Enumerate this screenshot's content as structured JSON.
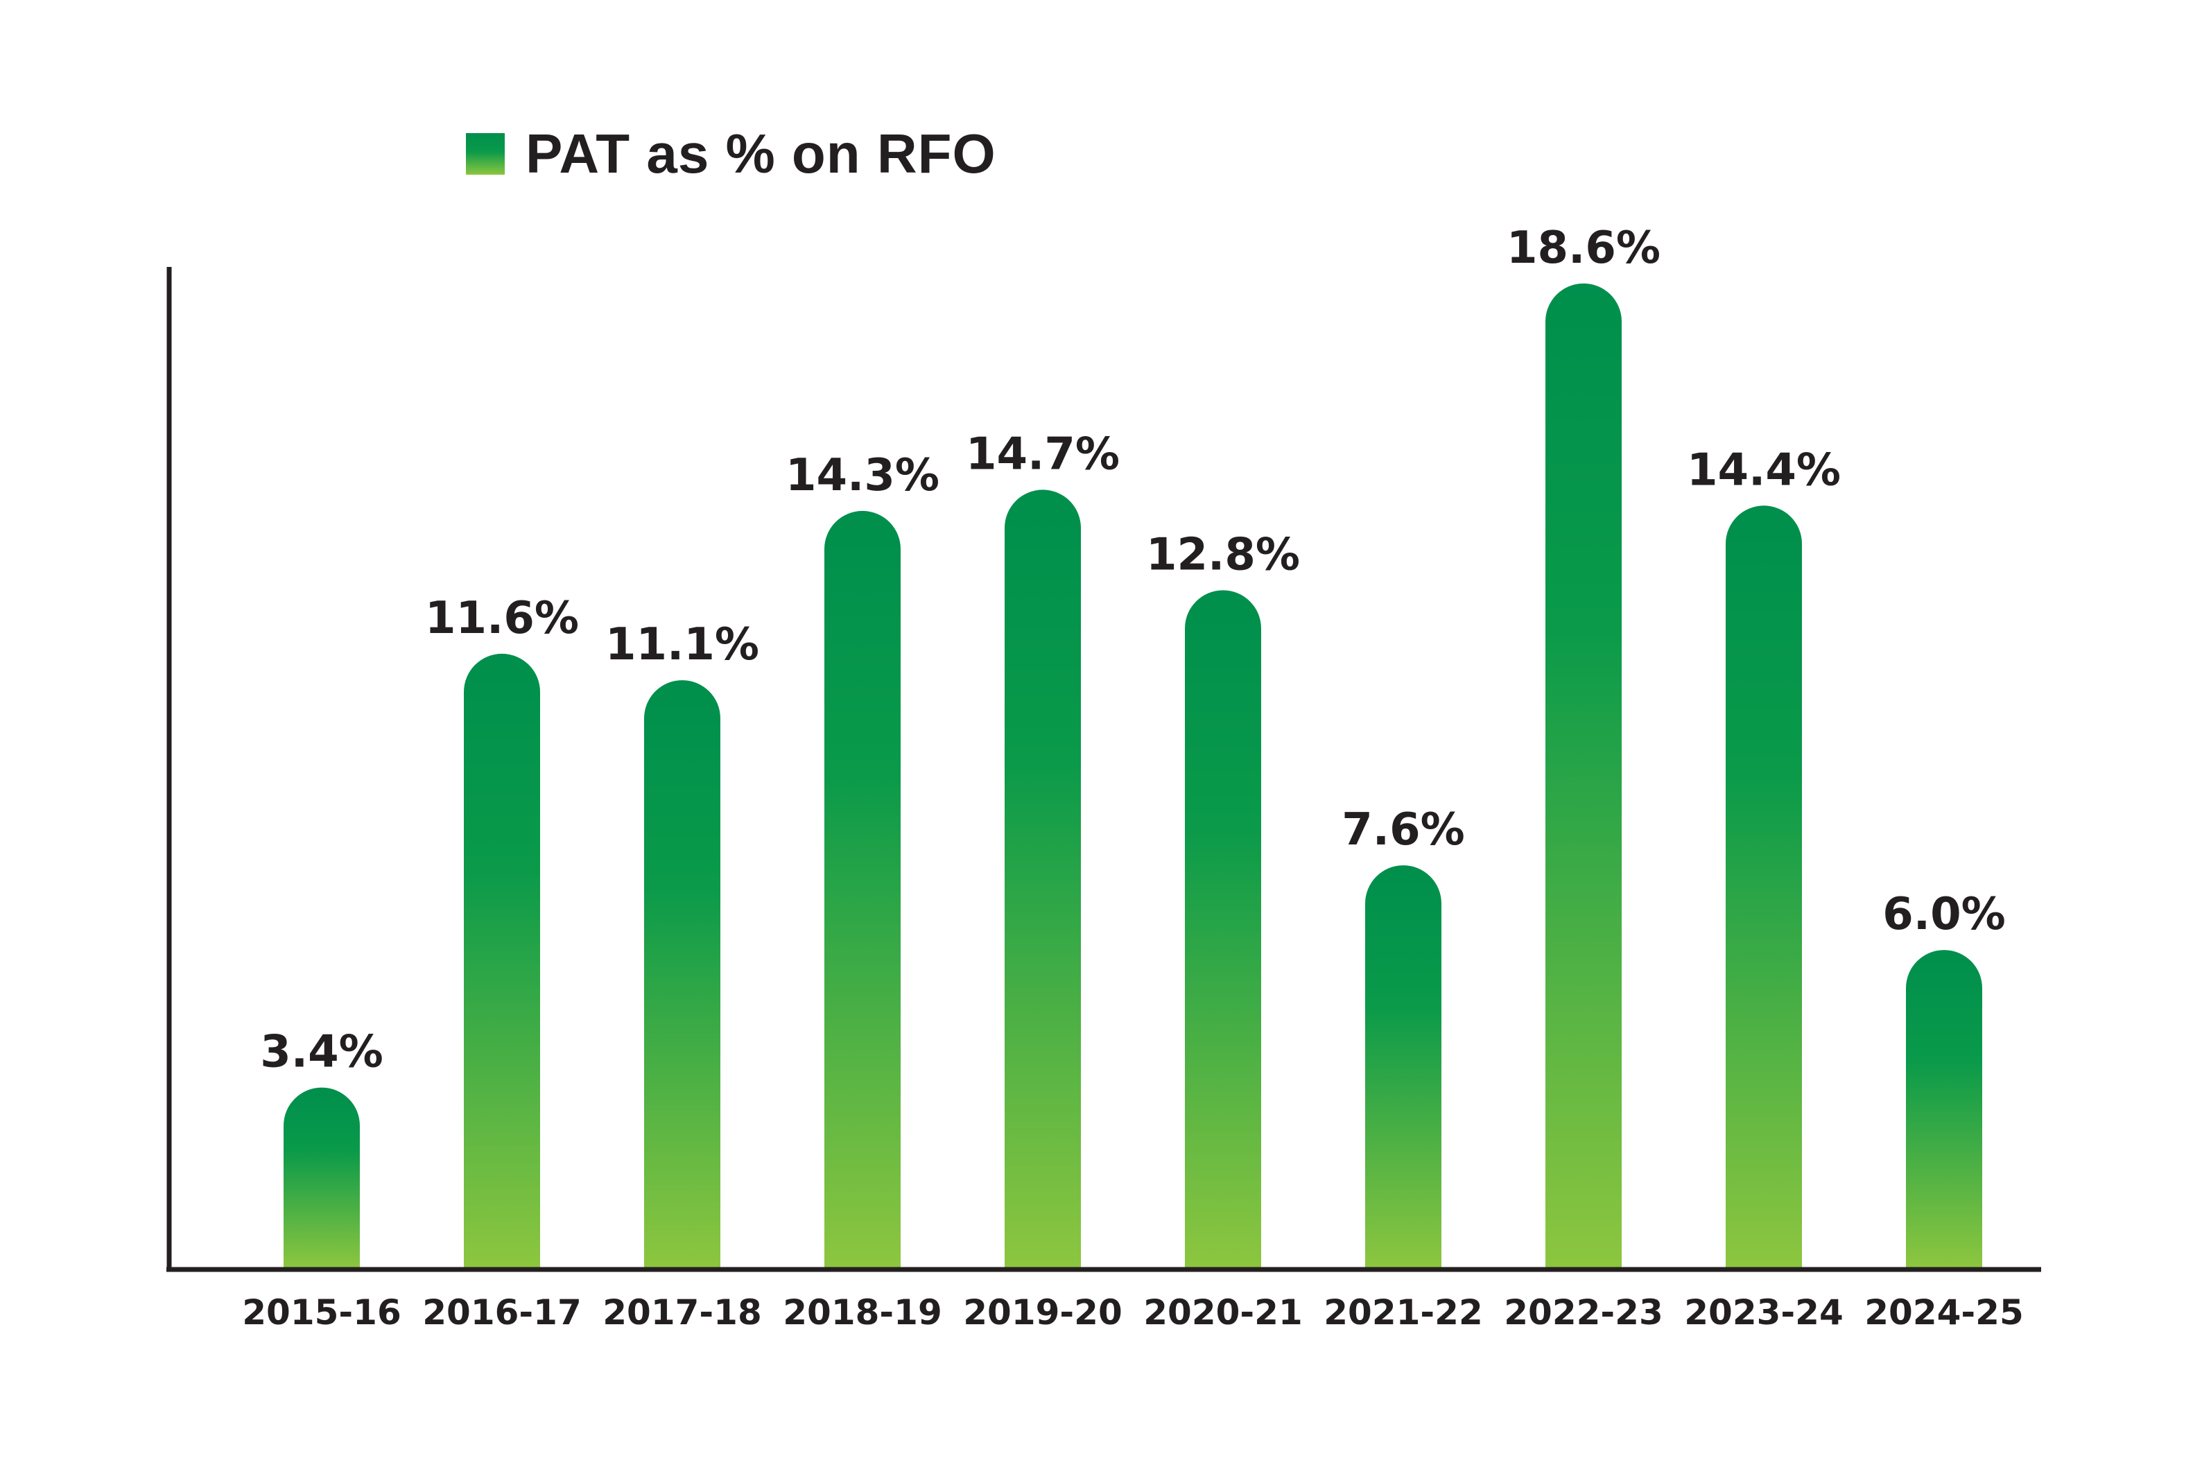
{
  "chart_data": {
    "type": "bar",
    "categories": [
      "2015-16",
      "2016-17",
      "2017-18",
      "2018-19",
      "2019-20",
      "2020-21",
      "2021-22",
      "2022-23",
      "2023-24",
      "2024-25"
    ],
    "series": [
      {
        "name": "PAT as % on RFO",
        "values": [
          3.4,
          11.6,
          11.1,
          14.3,
          14.7,
          12.8,
          7.6,
          18.6,
          14.4,
          6.0
        ],
        "value_labels": [
          "3.4%",
          "11.6%",
          "11.1%",
          "14.3%",
          "14.7%",
          "12.8%",
          "7.6%",
          "18.6%",
          "14.4%",
          "6.0%"
        ]
      }
    ],
    "title": "",
    "xlabel": "",
    "ylabel": "",
    "ylim": [
      0,
      20
    ],
    "grid": false,
    "legend_position": "top-left",
    "colors": {
      "bar_top": "#008f4c",
      "bar_mid": "#0a9a4a",
      "bar_bottom": "#8dc63f",
      "axis": "#231f20",
      "text": "#231f20"
    }
  },
  "legend": {
    "label": "PAT as % on RFO"
  }
}
